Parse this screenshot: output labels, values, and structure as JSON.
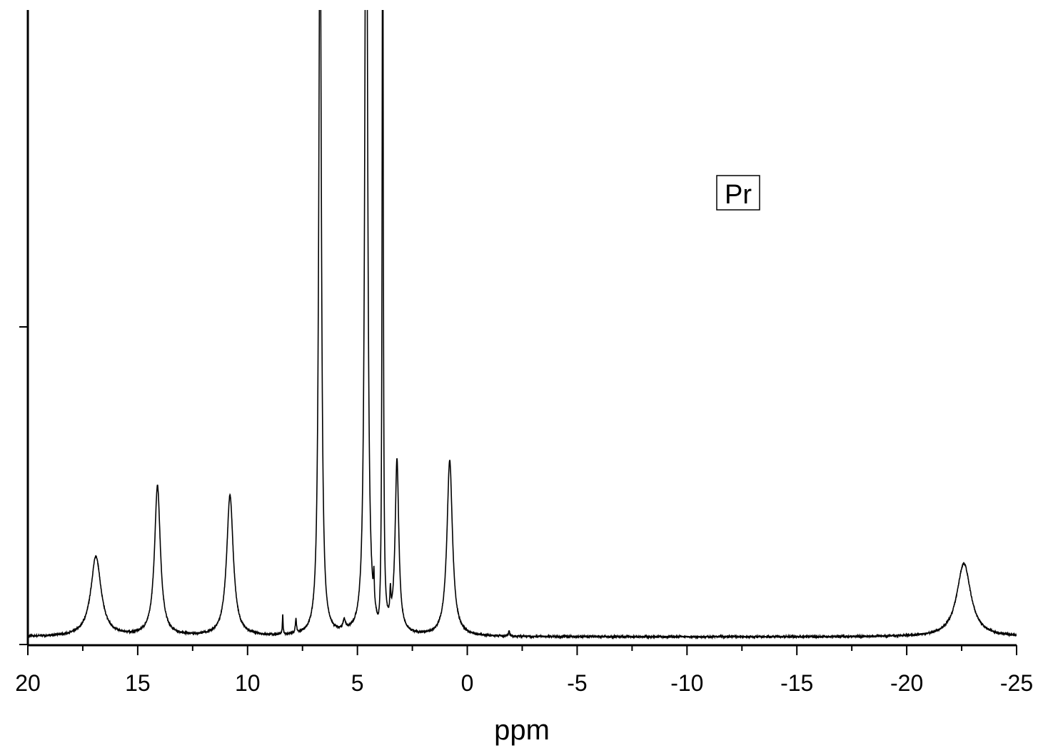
{
  "chart_data": {
    "type": "line",
    "title": "",
    "xlabel": "ppm",
    "ylabel": "",
    "xlim": [
      20,
      -25
    ],
    "x_reversed": true,
    "xticks": [
      20,
      15,
      10,
      5,
      0,
      -5,
      -10,
      -15,
      -20,
      -25
    ],
    "xtick_labels": [
      "20",
      "15",
      "10",
      "5",
      "0",
      "-5",
      "-10",
      "-15",
      "-20",
      "-25"
    ],
    "x_minor_step": 2.5,
    "ylim": [
      0,
      1
    ],
    "yticks": [
      0,
      0.5
    ],
    "ytick_labels": [],
    "grid": false,
    "legend": {
      "text": "Pr",
      "placement": "top-right"
    },
    "baseline": 0.012,
    "series": [
      {
        "peaks": [
          {
            "ppm": 16.9,
            "height": 0.126,
            "width": 0.28
          },
          {
            "ppm": 14.1,
            "height": 0.236,
            "width": 0.16
          },
          {
            "ppm": 10.8,
            "height": 0.222,
            "width": 0.18
          },
          {
            "ppm": 8.4,
            "height": 0.03,
            "width": 0.02
          },
          {
            "ppm": 7.8,
            "height": 0.022,
            "width": 0.03
          },
          {
            "ppm": 6.7,
            "height": 1.2,
            "width": 0.07
          },
          {
            "ppm": 5.6,
            "height": 0.015,
            "width": 0.08
          },
          {
            "ppm": 4.6,
            "height": 1.5,
            "width": 0.07
          },
          {
            "ppm": 4.25,
            "height": 0.045,
            "width": 0.02
          },
          {
            "ppm": 3.85,
            "height": 1.3,
            "width": 0.03
          },
          {
            "ppm": 3.5,
            "height": 0.04,
            "width": 0.03
          },
          {
            "ppm": 3.2,
            "height": 0.272,
            "width": 0.1
          },
          {
            "ppm": 0.8,
            "height": 0.277,
            "width": 0.15
          },
          {
            "ppm": -1.9,
            "height": 0.008,
            "width": 0.03
          },
          {
            "ppm": -22.6,
            "height": 0.116,
            "width": 0.38
          }
        ],
        "dips": [
          {
            "ppm": 4.0,
            "depth": 0.024,
            "width": 0.15
          }
        ]
      }
    ]
  }
}
